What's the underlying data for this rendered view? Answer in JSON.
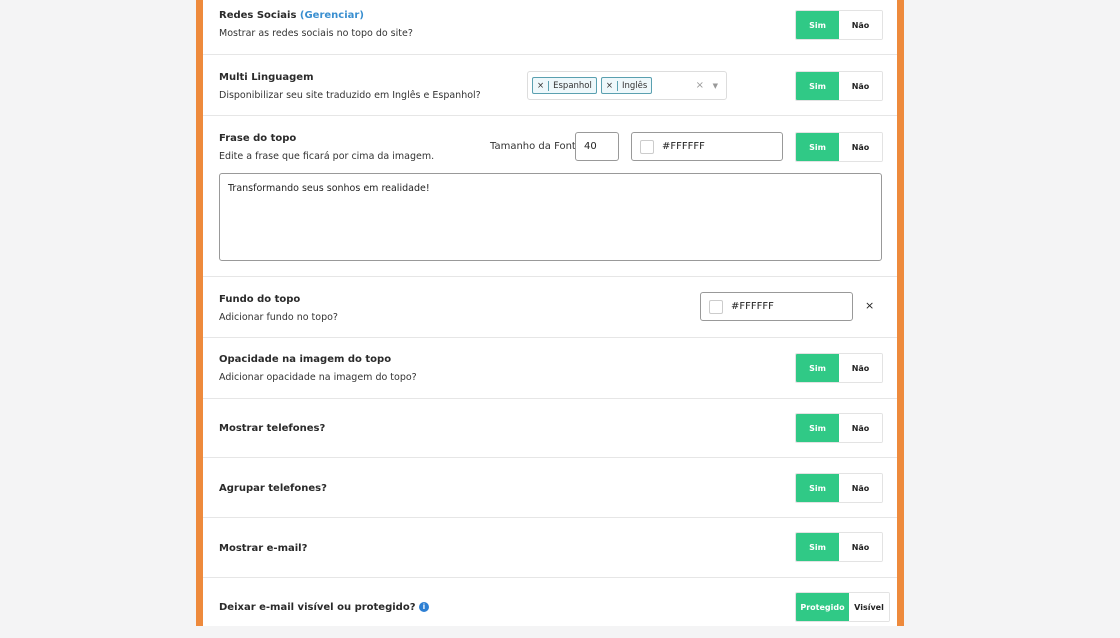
{
  "colors": {
    "accent": "#30c986",
    "border": "#ee8a3c",
    "link": "#3a8fd0"
  },
  "rows": {
    "social": {
      "title": "Redes Sociais",
      "link": "(Gerenciar)",
      "desc": "Mostrar as redes sociais no topo do site?",
      "on": "Sim",
      "off": "Não"
    },
    "lang": {
      "title": "Multi Linguagem",
      "desc": "Disponibilizar seu site traduzido em Inglês e Espanhol?",
      "tags": [
        "Espanhol",
        "Inglês"
      ],
      "on": "Sim",
      "off": "Não"
    },
    "phrase": {
      "title": "Frase do topo",
      "desc": "Edite a frase que ficará por cima da imagem.",
      "font_label": "Tamanho da Fonte",
      "font_size": "40",
      "color": "#FFFFFF",
      "text": "Transformando seus sonhos em realidade!",
      "on": "Sim",
      "off": "Não"
    },
    "bg": {
      "title": "Fundo do topo",
      "desc": "Adicionar fundo no topo?",
      "color": "#FFFFFF"
    },
    "opacity": {
      "title": "Opacidade na imagem do topo",
      "desc": "Adicionar opacidade na imagem do topo?",
      "on": "Sim",
      "off": "Não"
    },
    "phones": {
      "title": "Mostrar telefones?",
      "on": "Sim",
      "off": "Não"
    },
    "group": {
      "title": "Agrupar telefones?",
      "on": "Sim",
      "off": "Não"
    },
    "email": {
      "title": "Mostrar e-mail?",
      "on": "Sim",
      "off": "Não"
    },
    "emailvis": {
      "title": "Deixar e-mail visível ou protegido?",
      "on": "Protegido",
      "off": "Visível"
    }
  }
}
